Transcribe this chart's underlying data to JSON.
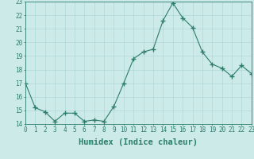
{
  "title": "",
  "xlabel": "Humidex (Indice chaleur)",
  "x": [
    0,
    1,
    2,
    3,
    4,
    5,
    6,
    7,
    8,
    9,
    10,
    11,
    12,
    13,
    14,
    15,
    16,
    17,
    18,
    19,
    20,
    21,
    22,
    23
  ],
  "y": [
    17.0,
    15.2,
    14.9,
    14.2,
    14.8,
    14.8,
    14.2,
    14.3,
    14.2,
    15.3,
    17.0,
    18.8,
    19.3,
    19.5,
    21.6,
    22.9,
    21.8,
    21.1,
    19.3,
    18.4,
    18.1,
    17.5,
    18.3,
    17.7
  ],
  "line_color": "#2d7d6b",
  "marker": "+",
  "marker_size": 4,
  "marker_linewidth": 1.0,
  "bg_color": "#cceae8",
  "grid_color": "#b0d8d5",
  "ylim": [
    14,
    23
  ],
  "xlim": [
    0,
    23
  ],
  "yticks": [
    14,
    15,
    16,
    17,
    18,
    19,
    20,
    21,
    22,
    23
  ],
  "xticks": [
    0,
    1,
    2,
    3,
    4,
    5,
    6,
    7,
    8,
    9,
    10,
    11,
    12,
    13,
    14,
    15,
    16,
    17,
    18,
    19,
    20,
    21,
    22,
    23
  ],
  "tick_label_fontsize": 5.5,
  "xlabel_fontsize": 7.5,
  "axis_color": "#2d7d6b",
  "linewidth": 0.8
}
